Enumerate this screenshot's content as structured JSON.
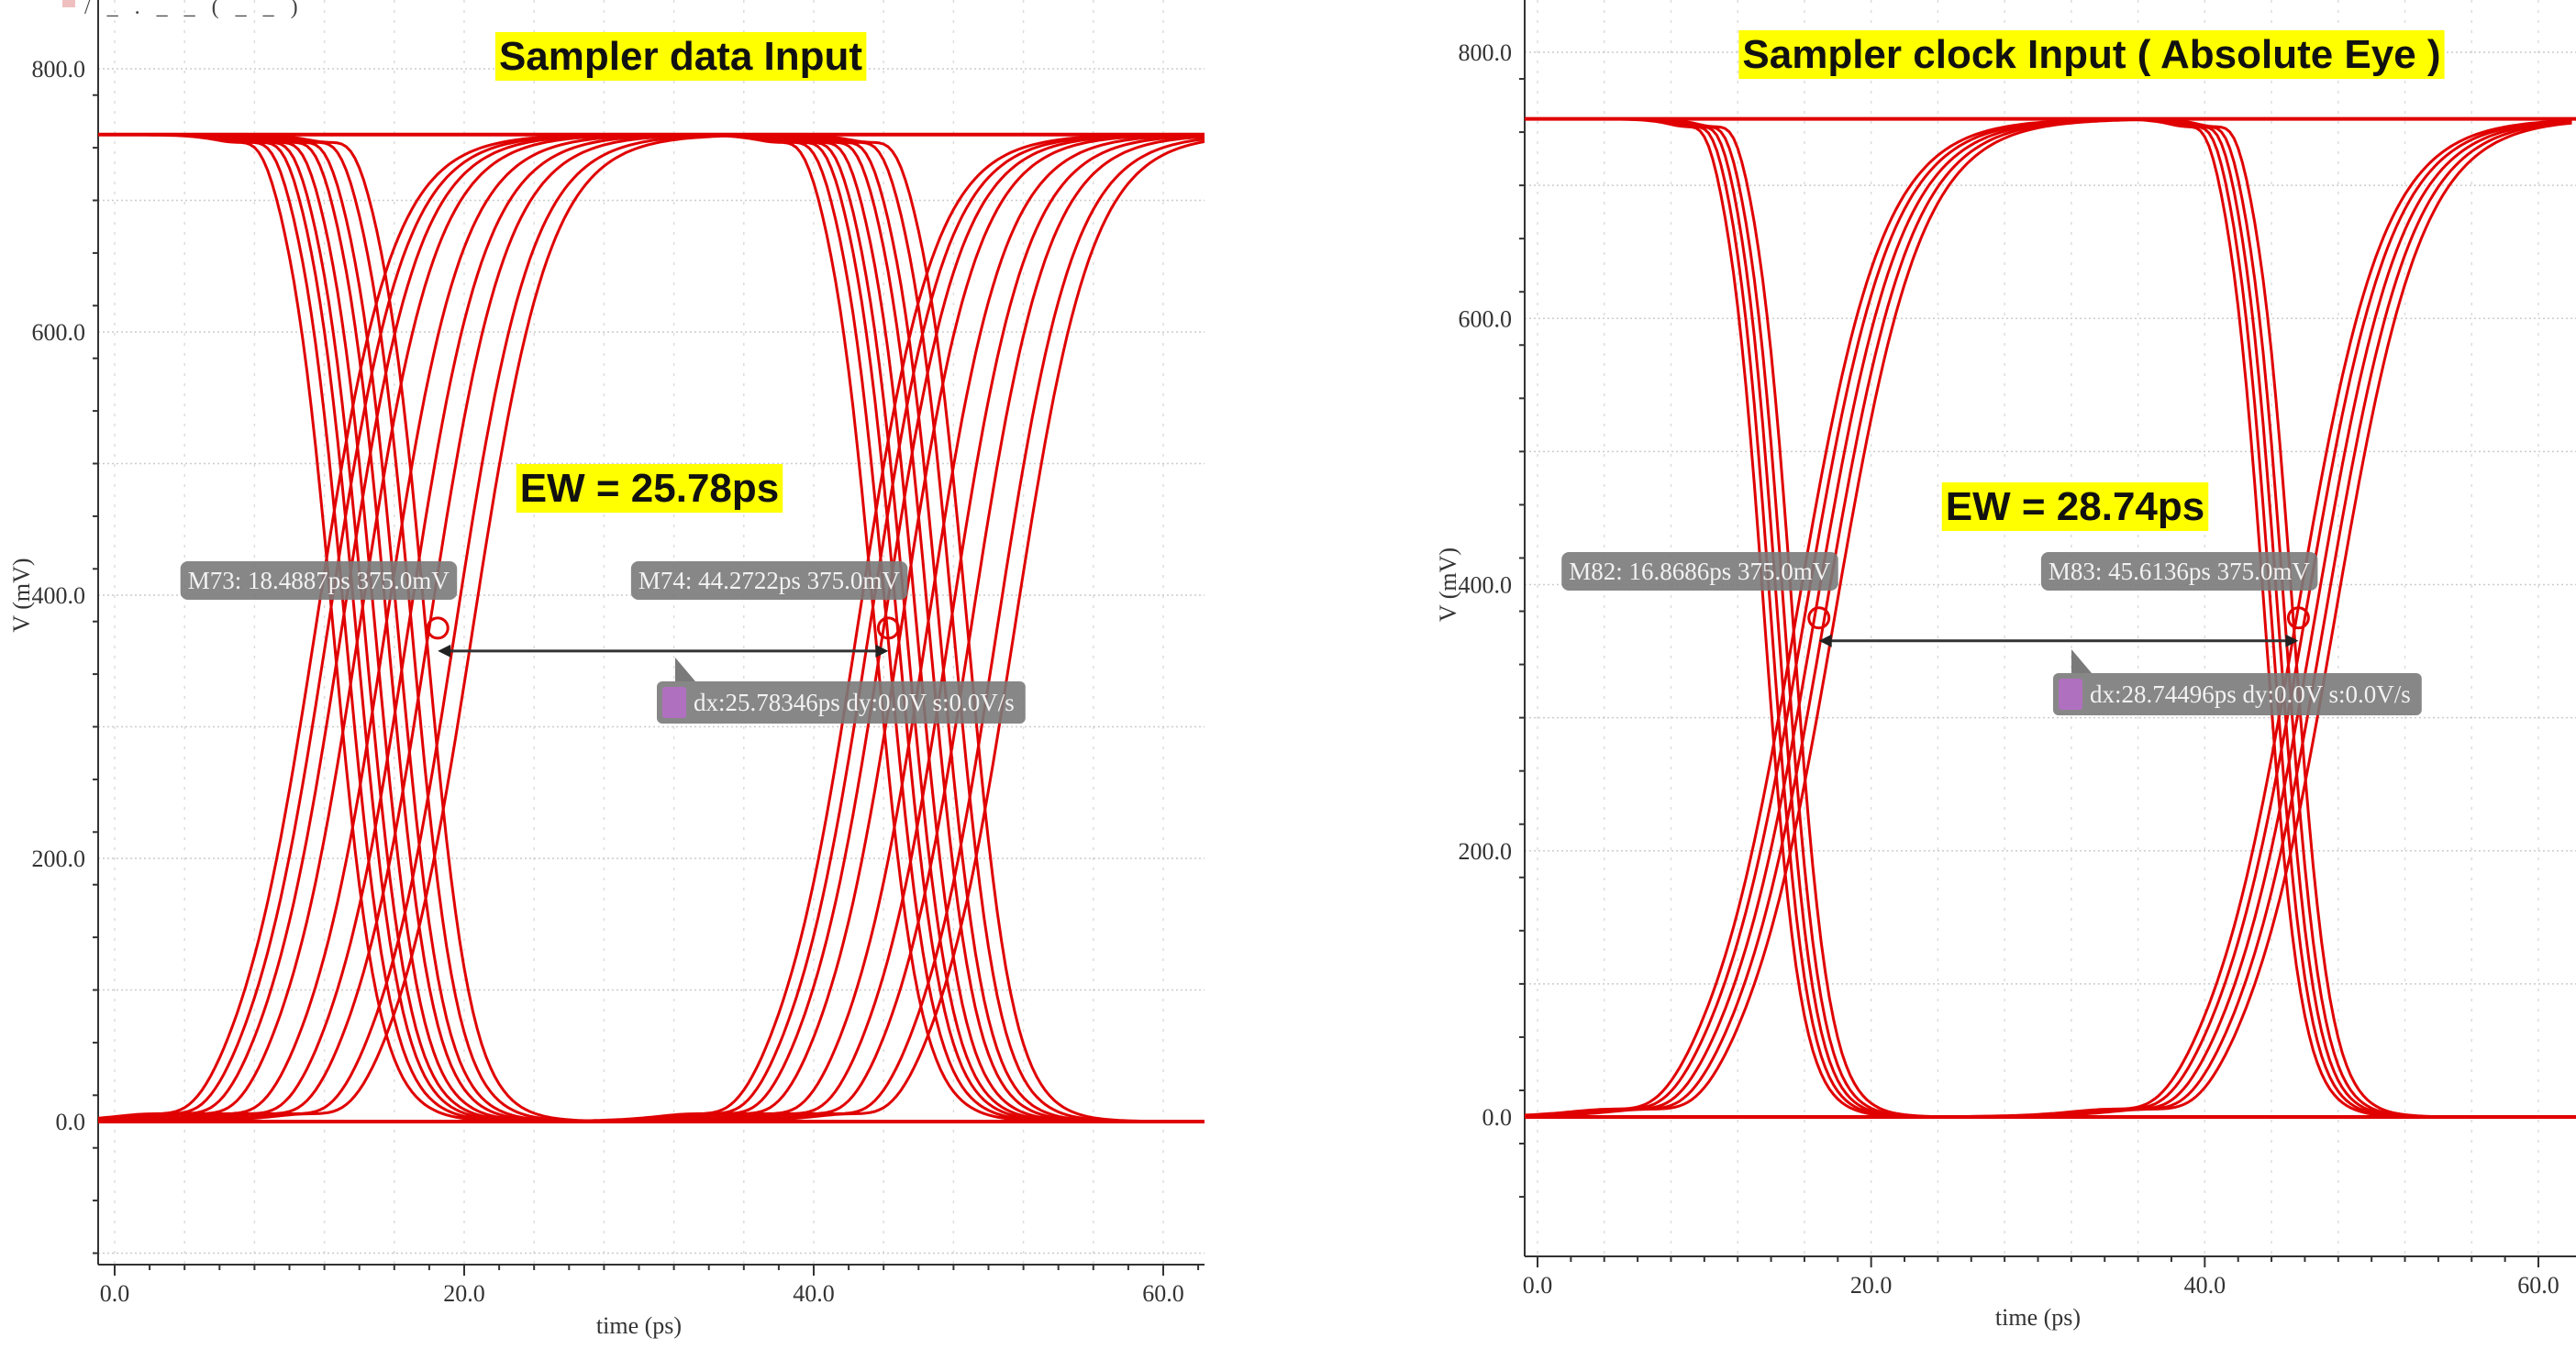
{
  "header_fragment": "/ _ . _ _ ( _ _ )",
  "colors": {
    "trace": "#e00000",
    "highlight": "#ffff00",
    "marker_box": "#7a7a7a",
    "delta_icon": "#b070c0",
    "grid": "#d0d0d0"
  },
  "chart_data": [
    {
      "type": "line",
      "subtype": "eye-diagram",
      "title": "Sampler data Input",
      "annotation": "EW = 25.78ps",
      "xlabel": "time (ps)",
      "ylabel": "V (mV)",
      "xlim": [
        0,
        62.5
      ],
      "ylim": [
        -100,
        820
      ],
      "xticks": [
        "0.0",
        "20.0",
        "40.0",
        "60.0"
      ],
      "yticks": [
        "0.0",
        "200.0",
        "400.0",
        "600.0",
        "800.0"
      ],
      "grid": true,
      "high_mV": 750,
      "low_mV": 0,
      "period_ps": 31,
      "falling_edges_ps": [
        12.5,
        13.2,
        13.8,
        14.3,
        14.9,
        15.6,
        16.2,
        17.0,
        17.8
      ],
      "rising_edges_ps": [
        11.5,
        12.2,
        13.0,
        14.0,
        15.5,
        16.8,
        18.0,
        19.5,
        20.5
      ],
      "markers": [
        {
          "label": "M73: 18.4887ps 375.0mV",
          "x": 18.4887,
          "y": 375.0
        },
        {
          "label": "M74: 44.2722ps 375.0mV",
          "x": 44.2722,
          "y": 375.0
        }
      ],
      "delta": {
        "label": "dx:25.78346ps dy:0.0V s:0.0V/s"
      }
    },
    {
      "type": "line",
      "subtype": "eye-diagram",
      "title": "Sampler clock Input ( Absolute Eye )",
      "annotation": "EW = 28.74ps",
      "xlabel": "time (ps)",
      "ylabel": "V (mV)",
      "xlim": [
        0,
        61
      ],
      "ylim": [
        -90,
        820
      ],
      "xticks": [
        "0.0",
        "20.0",
        "40.0",
        "60.0"
      ],
      "yticks": [
        "0.0",
        "200.0",
        "400.0",
        "600.0",
        "800.0"
      ],
      "grid": true,
      "high_mV": 750,
      "low_mV": 0,
      "period_ps": 30,
      "falling_edges_ps": [
        13.6,
        14.0,
        14.4,
        14.8,
        15.3
      ],
      "rising_edges_ps": [
        15.5,
        16.0,
        16.6,
        17.2,
        17.8
      ],
      "markers": [
        {
          "label": "M82: 16.8686ps 375.0mV",
          "x": 16.8686,
          "y": 375.0
        },
        {
          "label": "M83: 45.6136ps 375.0mV",
          "x": 45.6136,
          "y": 375.0
        }
      ],
      "delta": {
        "label": "dx:28.74496ps dy:0.0V s:0.0V/s"
      }
    }
  ]
}
